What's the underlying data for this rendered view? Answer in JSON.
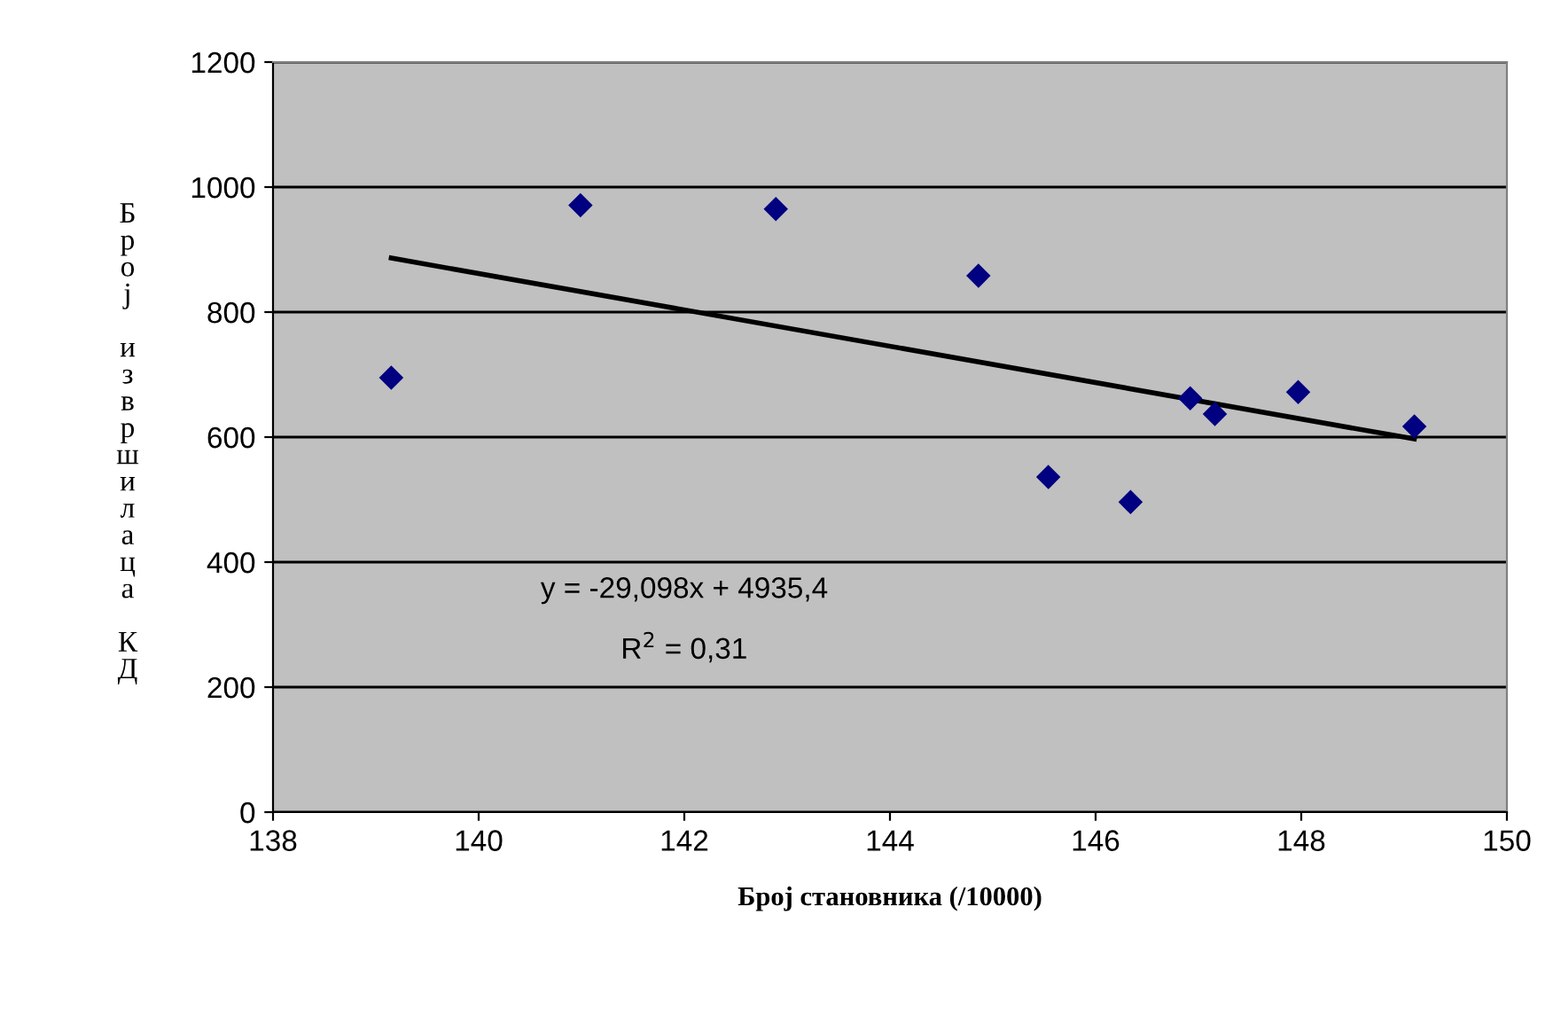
{
  "chart_data": {
    "type": "scatter",
    "xlabel": "Број становника (/10000)",
    "ylabel": "Број извршилаца КД",
    "xlim": [
      138,
      150
    ],
    "xticks": [
      138,
      140,
      142,
      144,
      146,
      148,
      150
    ],
    "ylim": [
      0,
      1200
    ],
    "yticks": [
      0,
      200,
      400,
      600,
      800,
      1000,
      1200
    ],
    "grid": "y",
    "marker": "diamond",
    "legend": false,
    "series": [
      {
        "color": "#000080",
        "x": [
          139.15,
          140.99,
          142.89,
          144.86,
          145.54,
          146.34,
          146.92,
          147.16,
          147.97,
          149.1
        ],
        "values": [
          695,
          971,
          965,
          858,
          536,
          496,
          662,
          637,
          672,
          617
        ]
      },
      {
        "type": "line",
        "marker": "none",
        "color": "#000000",
        "x": [
          139.15,
          149.1
        ],
        "values": [
          886.4,
          597.0
        ]
      }
    ],
    "annotations": [
      "y = -29,098x + 4935,4",
      "R$^{2}$ = 0,31"
    ]
  }
}
